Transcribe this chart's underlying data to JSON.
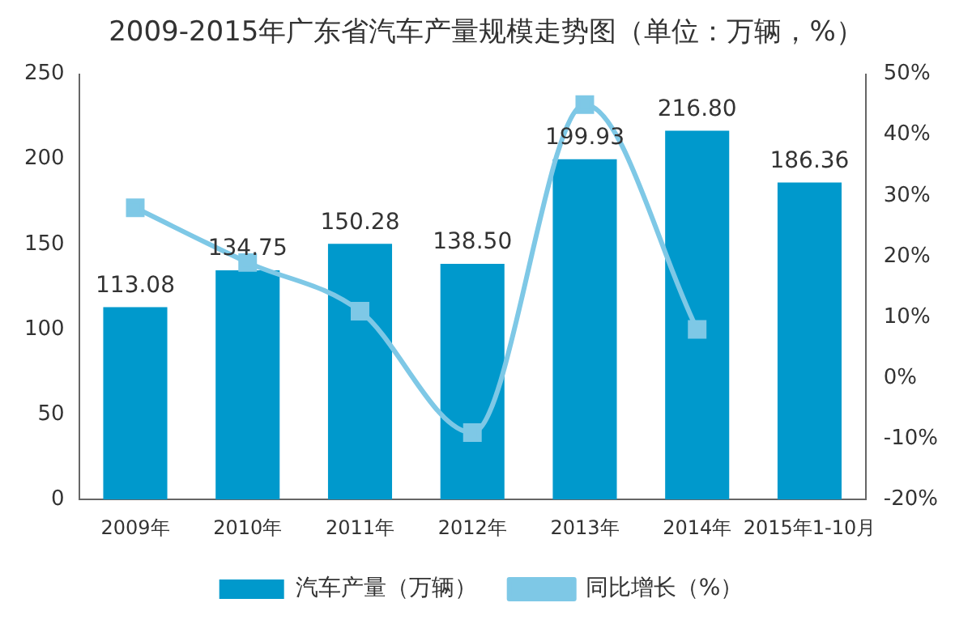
{
  "chart_data": {
    "type": "bar",
    "title": "2009-2015年广东省汽车产量规模走势图（单位：万辆，%）",
    "categories": [
      "2009年",
      "2010年",
      "2011年",
      "2012年",
      "2013年",
      "2014年",
      "2015年1-10月"
    ],
    "series": [
      {
        "name": "汽车产量（万辆）",
        "color": "#0099cc",
        "values": [
          113.08,
          134.75,
          150.28,
          138.5,
          199.93,
          216.8,
          186.36
        ],
        "value_labels": [
          "113.08",
          "134.75",
          "150.28",
          "138.50",
          "199.93",
          "216.80",
          "186.36"
        ]
      },
      {
        "name": "同比增长（%）",
        "type": "line",
        "axis": "y2",
        "color": "#7ec8e6",
        "marker": "square",
        "values": [
          28,
          19,
          11,
          -9,
          45,
          8,
          null
        ]
      }
    ],
    "ylim": [
      0,
      250
    ],
    "yticks": [
      0,
      50,
      100,
      150,
      200,
      250
    ],
    "y2lim": [
      -20,
      50
    ],
    "y2ticks": [
      {
        "value": -20,
        "label": "-20%"
      },
      {
        "value": -10,
        "label": "-10%"
      },
      {
        "value": 0,
        "label": "0%"
      },
      {
        "value": 10,
        "label": "10%"
      },
      {
        "value": 20,
        "label": "20%"
      },
      {
        "value": 30,
        "label": "30%"
      },
      {
        "value": 40,
        "label": "40%"
      },
      {
        "value": 50,
        "label": "50%"
      }
    ],
    "grid": false,
    "legend": "bottom"
  }
}
